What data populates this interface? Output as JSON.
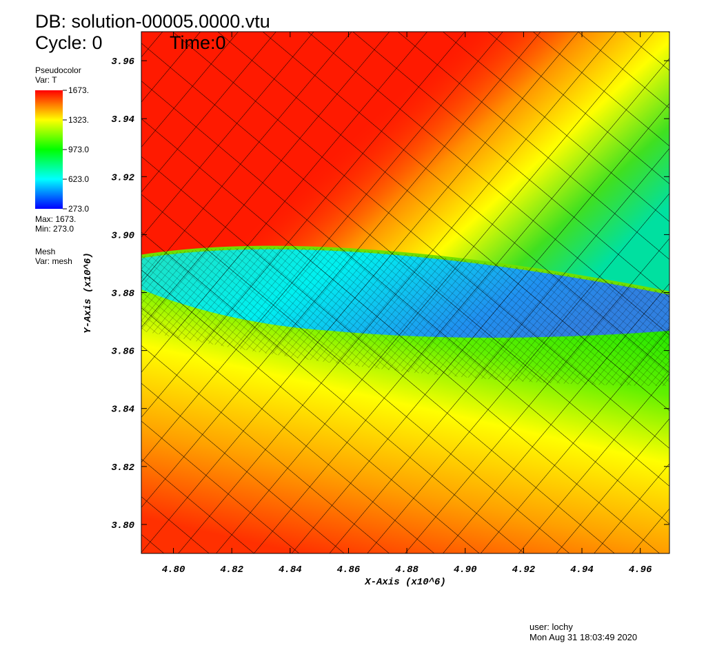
{
  "chart_data": {
    "type": "pseudocolor",
    "title": "DB: solution-00005.0000.vtu",
    "cycle": "Cycle: 0",
    "time": "Time:0",
    "legend": {
      "plot": "Pseudocolor",
      "var": "Var: T",
      "colorbar_lim": [
        273,
        1673
      ],
      "colorbar_ticks": [
        {
          "value": 1673,
          "label": "1673."
        },
        {
          "value": 1323,
          "label": "1323."
        },
        {
          "value": 973,
          "label": "973.0"
        },
        {
          "value": 623,
          "label": "623.0"
        },
        {
          "value": 273,
          "label": "273.0"
        }
      ],
      "max": {
        "value": 1673,
        "label": "Max:  1673."
      },
      "min": {
        "value": 273,
        "label": "Min:  273.0"
      }
    },
    "mesh_legend": {
      "plot": "Mesh",
      "var": "Var: mesh"
    },
    "xlabel": "X-Axis (x10^6)",
    "ylabel": "Y-Axis (x10^6)",
    "xlim": [
      4.789,
      4.97
    ],
    "ylim": [
      3.79,
      3.97
    ],
    "xticks": [
      {
        "value": 4.8,
        "label": "4.80"
      },
      {
        "value": 4.82,
        "label": "4.82"
      },
      {
        "value": 4.84,
        "label": "4.84"
      },
      {
        "value": 4.86,
        "label": "4.86"
      },
      {
        "value": 4.88,
        "label": "4.88"
      },
      {
        "value": 4.9,
        "label": "4.90"
      },
      {
        "value": 4.92,
        "label": "4.92"
      },
      {
        "value": 4.94,
        "label": "4.94"
      },
      {
        "value": 4.96,
        "label": "4.96"
      }
    ],
    "yticks": [
      {
        "value": 3.8,
        "label": "3.80"
      },
      {
        "value": 3.82,
        "label": "3.82"
      },
      {
        "value": 3.84,
        "label": "3.84"
      },
      {
        "value": 3.86,
        "label": "3.86"
      },
      {
        "value": 3.88,
        "label": "3.88"
      },
      {
        "value": 3.9,
        "label": "3.90"
      },
      {
        "value": 3.92,
        "label": "3.92"
      },
      {
        "value": 3.94,
        "label": "3.94"
      },
      {
        "value": 3.96,
        "label": "3.96"
      }
    ],
    "user": "user: lochy",
    "date": "Mon Aug 31 18:03:49 2020"
  }
}
